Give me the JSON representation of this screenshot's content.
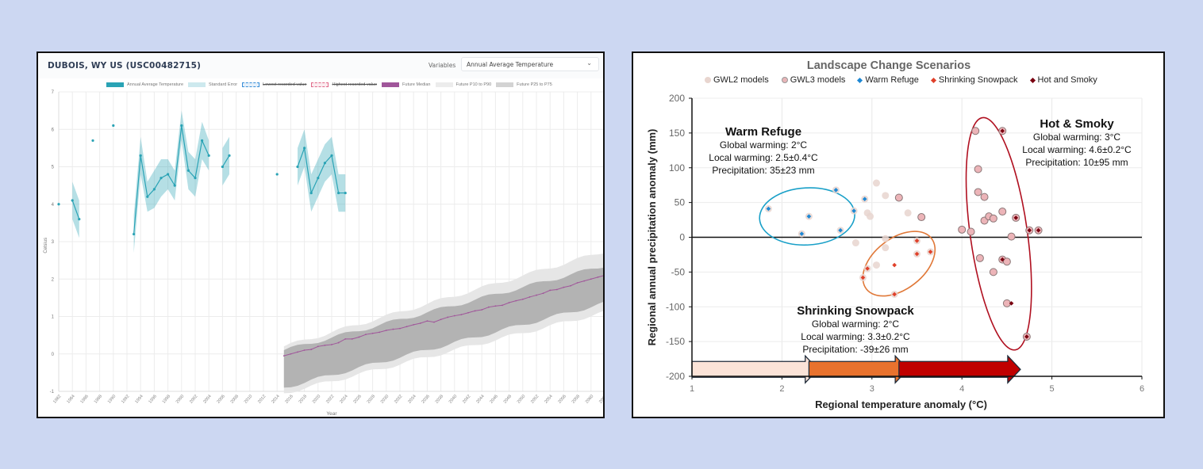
{
  "left_panel": {
    "station_title": "DUBOIS, WY US (USC00482715)",
    "variables_label": "Variables",
    "variable_selected": "Annual Average Temperature",
    "chevron_icon": "chevron-down-icon",
    "legend": [
      {
        "label": "Annual Average Temperature",
        "color": "#2aa3b5",
        "struck": false
      },
      {
        "label": "Standard Error",
        "color": "#cde9ee",
        "struck": false
      },
      {
        "label": "Lowest recorded value",
        "color": "#3a8fd8",
        "struck": true
      },
      {
        "label": "Highest recorded value",
        "color": "#e06a8a",
        "struck": true
      },
      {
        "label": "Future Median",
        "color": "#a0569a",
        "struck": false
      },
      {
        "label": "Future P10 to P90",
        "color": "#ececec",
        "struck": false
      },
      {
        "label": "Future P25 to P75",
        "color": "#d3d3d3",
        "struck": false
      }
    ]
  },
  "chart_data": [
    {
      "type": "line",
      "title": "DUBOIS, WY US (USC00482715)",
      "xlabel": "Year",
      "ylabel": "Celsius",
      "xlim": [
        1982,
        2062
      ],
      "ylim": [
        -1,
        7
      ],
      "yticks": [
        -1,
        0,
        1,
        2,
        3,
        4,
        5,
        6,
        7
      ],
      "xticks": [
        1982,
        1984,
        1986,
        1988,
        1990,
        1992,
        1994,
        1996,
        1998,
        2000,
        2002,
        2004,
        2006,
        2008,
        2010,
        2012,
        2014,
        2016,
        2018,
        2020,
        2022,
        2024,
        2026,
        2028,
        2030,
        2032,
        2034,
        2036,
        2038,
        2040,
        2042,
        2044,
        2046,
        2048,
        2050,
        2052,
        2054,
        2056,
        2058,
        2060,
        2062
      ],
      "grid": true,
      "legend_position": "top",
      "series": [
        {
          "name": "Annual Average Temperature",
          "points": [
            [
              1982,
              4.0,
              null
            ],
            [
              1984,
              4.1,
              0.5
            ],
            [
              1985,
              3.6,
              0.5
            ],
            [
              1987,
              5.7,
              null
            ],
            [
              1990,
              6.1,
              null
            ],
            [
              1993,
              3.2,
              0.5
            ],
            [
              1994,
              5.3,
              0.5
            ],
            [
              1995,
              4.2,
              0.4
            ],
            [
              1996,
              4.4,
              0.5
            ],
            [
              1997,
              4.7,
              0.5
            ],
            [
              1998,
              4.8,
              0.4
            ],
            [
              1999,
              4.5,
              0.4
            ],
            [
              2000,
              6.1,
              0.4
            ],
            [
              2001,
              4.9,
              0.5
            ],
            [
              2002,
              4.7,
              0.5
            ],
            [
              2003,
              5.7,
              0.5
            ],
            [
              2004,
              5.3,
              0.4
            ],
            [
              2006,
              5.0,
              0.5
            ],
            [
              2007,
              5.3,
              0.5
            ],
            [
              2014,
              4.8,
              null
            ],
            [
              2017,
              5.0,
              0.5
            ],
            [
              2018,
              5.5,
              0.5
            ],
            [
              2019,
              4.3,
              0.5
            ],
            [
              2020,
              4.7,
              0.5
            ],
            [
              2021,
              5.1,
              0.5
            ],
            [
              2022,
              5.3,
              0.5
            ],
            [
              2023,
              4.3,
              0.5
            ],
            [
              2024,
              4.3,
              0.5
            ]
          ],
          "point_format": [
            "year",
            "value",
            "standard_error"
          ]
        },
        {
          "name": "Future Median",
          "x_start": 2015,
          "values": [
            -0.05,
            0.0,
            0.05,
            0.1,
            0.12,
            0.2,
            0.23,
            0.25,
            0.3,
            0.4,
            0.4,
            0.45,
            0.52,
            0.55,
            0.58,
            0.63,
            0.66,
            0.68,
            0.73,
            0.78,
            0.82,
            0.88,
            0.85,
            0.92,
            0.98,
            1.02,
            1.05,
            1.1,
            1.15,
            1.18,
            1.25,
            1.28,
            1.3,
            1.37,
            1.42,
            1.46,
            1.52,
            1.57,
            1.62,
            1.7,
            1.72,
            1.78,
            1.82,
            1.9,
            1.95,
            2.0,
            2.05,
            2.1,
            2.15,
            2.18,
            2.2
          ]
        },
        {
          "name": "Future P25 to P75",
          "x_start": 2015,
          "lower_start": -0.9,
          "lower_end": 1.5,
          "upper_start": 0.1,
          "upper_end": 2.5
        },
        {
          "name": "Future P10 to P90",
          "x_start": 2015,
          "lower_start": -1.05,
          "lower_end": 1.25,
          "upper_start": 0.2,
          "upper_end": 2.9
        }
      ]
    },
    {
      "type": "scatter",
      "title": "Landscape Change Scenarios",
      "xlabel": "Regional temperature anomaly (°C)",
      "ylabel": "Regional annual precipitation anomaly (mm)",
      "xlim": [
        1,
        6
      ],
      "ylim": [
        -200,
        200
      ],
      "xticks": [
        1,
        2,
        3,
        4,
        5,
        6
      ],
      "yticks": [
        -200,
        -150,
        -100,
        -50,
        0,
        50,
        100,
        150,
        200
      ],
      "grid": true,
      "legend_position": "top",
      "legend": [
        {
          "label": "GWL2 models",
          "marker": "circle",
          "color": "#e8d5cf"
        },
        {
          "label": "GWL3 models",
          "marker": "circle",
          "color": "#e8b5b8"
        },
        {
          "label": "Warm Refuge",
          "marker": "diamond",
          "color": "#1e88d4"
        },
        {
          "label": "Shrinking Snowpack",
          "marker": "diamond",
          "color": "#e0402a"
        },
        {
          "label": "Hot and Smoky",
          "marker": "diamond",
          "color": "#7a0010"
        }
      ],
      "series": [
        {
          "name": "GWL2 models",
          "points": [
            [
              1.85,
              41
            ],
            [
              2.22,
              5
            ],
            [
              2.3,
              30
            ],
            [
              2.6,
              68
            ],
            [
              2.65,
              10
            ],
            [
              2.8,
              38
            ],
            [
              2.92,
              55
            ],
            [
              2.95,
              35
            ],
            [
              2.98,
              30
            ],
            [
              3.05,
              78
            ],
            [
              3.15,
              60
            ],
            [
              3.4,
              35
            ],
            [
              2.82,
              -8
            ],
            [
              3.15,
              -2
            ],
            [
              3.15,
              -15
            ],
            [
              3.05,
              -40
            ],
            [
              2.95,
              -45
            ],
            [
              2.9,
              -58
            ],
            [
              3.25,
              -82
            ],
            [
              3.5,
              -24
            ],
            [
              3.5,
              -5
            ],
            [
              3.65,
              -21
            ]
          ]
        },
        {
          "name": "GWL3 models",
          "points": [
            [
              3.3,
              57
            ],
            [
              3.55,
              29
            ],
            [
              4.0,
              11
            ],
            [
              4.1,
              8
            ],
            [
              4.15,
              153
            ],
            [
              4.18,
              98
            ],
            [
              4.18,
              65
            ],
            [
              4.25,
              58
            ],
            [
              4.25,
              24
            ],
            [
              4.3,
              30
            ],
            [
              4.35,
              27
            ],
            [
              4.45,
              37
            ],
            [
              4.45,
              153
            ],
            [
              4.55,
              1
            ],
            [
              4.6,
              28
            ],
            [
              4.2,
              -30
            ],
            [
              4.35,
              -50
            ],
            [
              4.45,
              -32
            ],
            [
              4.5,
              -35
            ],
            [
              4.5,
              -95
            ],
            [
              4.75,
              10
            ],
            [
              4.85,
              10
            ],
            [
              4.72,
              -143
            ]
          ]
        },
        {
          "name": "Warm Refuge",
          "points": [
            [
              1.85,
              41
            ],
            [
              2.22,
              5
            ],
            [
              2.3,
              30
            ],
            [
              2.6,
              68
            ],
            [
              2.65,
              10
            ],
            [
              2.8,
              38
            ],
            [
              2.92,
              55
            ]
          ]
        },
        {
          "name": "Shrinking Snowpack",
          "points": [
            [
              2.95,
              -45
            ],
            [
              2.9,
              -58
            ],
            [
              3.25,
              -40
            ],
            [
              3.25,
              -82
            ],
            [
              3.5,
              -24
            ],
            [
              3.5,
              -5
            ],
            [
              3.65,
              -21
            ]
          ]
        },
        {
          "name": "Hot and Smoky",
          "points": [
            [
              4.45,
              153
            ],
            [
              4.6,
              28
            ],
            [
              4.75,
              10
            ],
            [
              4.85,
              10
            ],
            [
              4.45,
              -32
            ],
            [
              4.55,
              -95
            ],
            [
              4.72,
              -143
            ]
          ]
        }
      ],
      "annotations": [
        {
          "title": "Warm Refuge",
          "lines": [
            "Global warming: 2°C",
            "Local warming: 2.5±0.4°C",
            "Precipitation: 35±23 mm"
          ],
          "ellipse_color": "#1aa0c8"
        },
        {
          "title": "Shrinking Snowpack",
          "lines": [
            "Global warming: 2°C",
            "Local warming: 3.3±0.2°C",
            "Precipitation: -39±26 mm"
          ],
          "ellipse_color": "#e07838"
        },
        {
          "title": "Hot & Smoky",
          "lines": [
            "Global warming: 3°C",
            "Local warming: 4.6±0.2°C",
            "Precipitation: 10±95 mm"
          ],
          "ellipse_color": "#b01020"
        }
      ],
      "arrows": [
        {
          "from": 1.0,
          "to": 2.4,
          "color": "#fbe3d8"
        },
        {
          "from": 2.3,
          "to": 3.4,
          "color": "#e8722e"
        },
        {
          "from": 3.3,
          "to": 4.65,
          "color": "#c00000"
        }
      ]
    }
  ]
}
